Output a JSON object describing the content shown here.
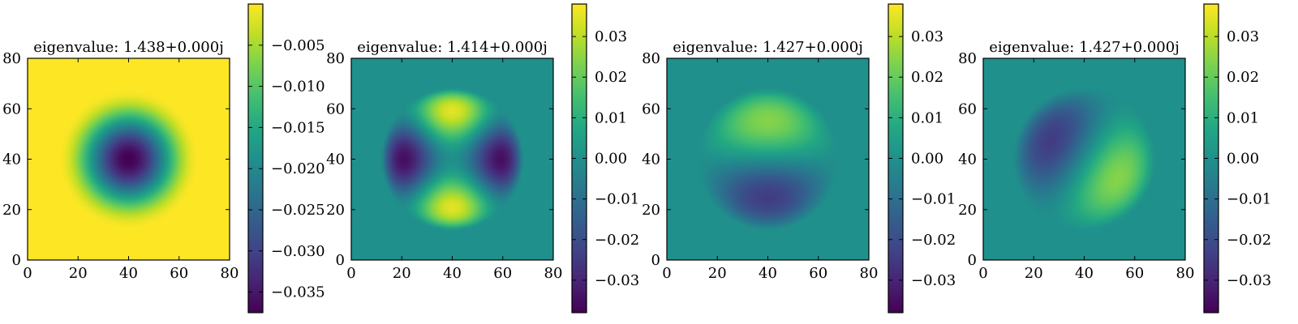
{
  "chart_data": [
    {
      "type": "heatmap",
      "title": "eigenvalue: 1.438+0.000j",
      "xlim": [
        0,
        80
      ],
      "ylim": [
        0,
        80
      ],
      "xticks": [
        "0",
        "20",
        "40",
        "60",
        "80"
      ],
      "yticks": [
        "0",
        "20",
        "40",
        "60",
        "80"
      ],
      "colormap": "viridis",
      "colorbar": {
        "range": [
          -0.0375,
          0.0
        ],
        "ticks": [
          -0.005,
          -0.01,
          -0.015,
          -0.02,
          -0.025,
          -0.03,
          -0.035
        ],
        "tick_labels": [
          "−0.005",
          "−0.010",
          "−0.015",
          "−0.020",
          "−0.025",
          "−0.030",
          "−0.035"
        ]
      },
      "mode": {
        "kind": "radial",
        "center": [
          40,
          40
        ],
        "radius": 28,
        "min": -0.0375,
        "max": 0.0
      }
    },
    {
      "type": "heatmap",
      "title": "eigenvalue: 1.414+0.000j",
      "xlim": [
        0,
        80
      ],
      "ylim": [
        0,
        80
      ],
      "xticks": [
        "0",
        "20",
        "40",
        "60",
        "80"
      ],
      "yticks": [
        "0",
        "20",
        "40",
        "60",
        "80"
      ],
      "colormap": "viridis",
      "colorbar": {
        "range": [
          -0.038,
          0.038
        ],
        "ticks": [
          0.03,
          0.02,
          0.01,
          0.0,
          -0.01,
          -0.02,
          -0.03
        ],
        "tick_labels": [
          "0.03",
          "0.02",
          "0.01",
          "0.00",
          "−0.01",
          "−0.02",
          "−0.03"
        ]
      },
      "mode": {
        "kind": "quadrupole",
        "center": [
          40,
          40
        ],
        "radius": 28,
        "max_abs": 0.038
      }
    },
    {
      "type": "heatmap",
      "title": "eigenvalue: 1.427+0.000j",
      "xlim": [
        0,
        80
      ],
      "ylim": [
        0,
        80
      ],
      "xticks": [
        "0",
        "20",
        "40",
        "60",
        "80"
      ],
      "yticks": [
        "0",
        "20",
        "40",
        "60",
        "80"
      ],
      "colormap": "viridis",
      "colorbar": {
        "range": [
          -0.038,
          0.038
        ],
        "ticks": [
          0.03,
          0.02,
          0.01,
          0.0,
          -0.01,
          -0.02,
          -0.03
        ],
        "tick_labels": [
          "0.03",
          "0.02",
          "0.01",
          "0.00",
          "−0.01",
          "−0.02",
          "−0.03"
        ]
      },
      "mode": {
        "kind": "dipole",
        "center": [
          40,
          40
        ],
        "radius": 28,
        "angle_deg": 90,
        "max_abs": 0.038
      }
    },
    {
      "type": "heatmap",
      "title": "eigenvalue: 1.427+0.000j",
      "xlim": [
        0,
        80
      ],
      "ylim": [
        0,
        80
      ],
      "xticks": [
        "0",
        "20",
        "40",
        "60",
        "80"
      ],
      "yticks": [
        "0",
        "20",
        "40",
        "60",
        "80"
      ],
      "colormap": "viridis",
      "colorbar": {
        "range": [
          -0.038,
          0.038
        ],
        "ticks": [
          0.03,
          0.02,
          0.01,
          0.0,
          -0.01,
          -0.02,
          -0.03
        ],
        "tick_labels": [
          "0.03",
          "0.02",
          "0.01",
          "0.00",
          "−0.01",
          "−0.02",
          "−0.03"
        ]
      },
      "mode": {
        "kind": "dipole",
        "center": [
          40,
          40
        ],
        "radius": 28,
        "angle_deg": -30,
        "max_abs": 0.038
      }
    }
  ]
}
